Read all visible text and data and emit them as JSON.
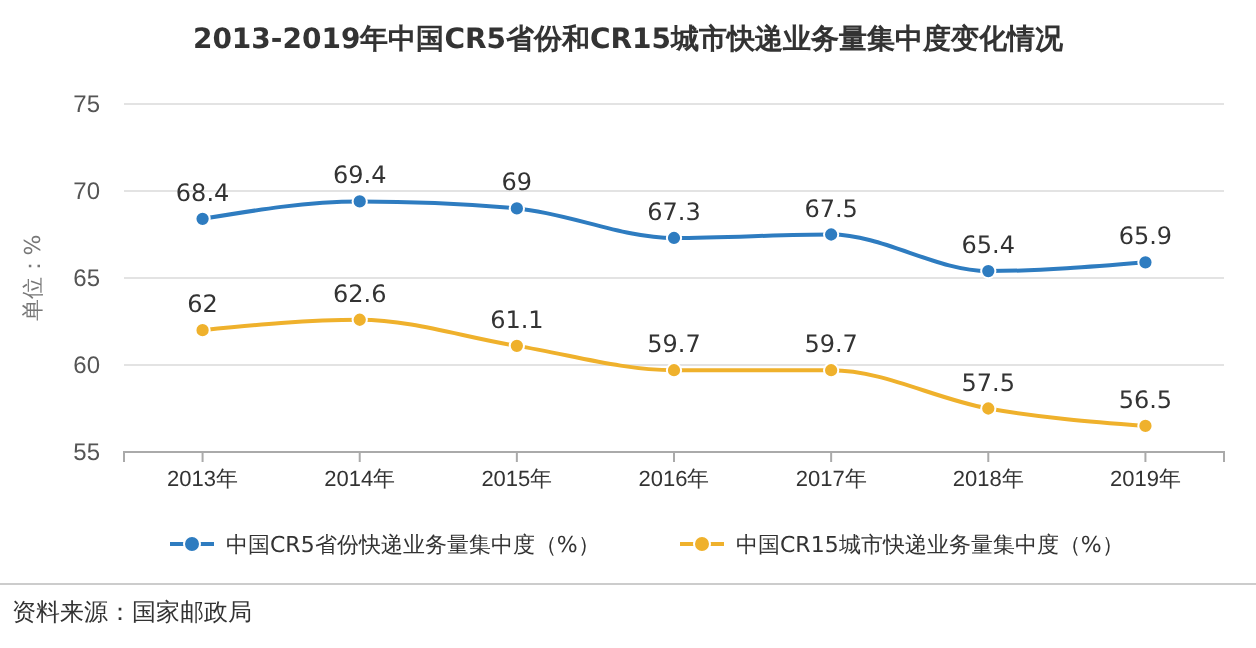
{
  "chart_data": {
    "type": "line",
    "title": "2013-2019年中国CR5省份和CR15城市快递业务量集中度变化情况",
    "ylabel": "单位：%",
    "categories": [
      "2013年",
      "2014年",
      "2015年",
      "2016年",
      "2017年",
      "2018年",
      "2019年"
    ],
    "series": [
      {
        "name": "中国CR5省份快递业务量集中度（%）",
        "color": "#2e7cc0",
        "values": [
          68.4,
          69.4,
          69,
          67.3,
          67.5,
          65.4,
          65.9
        ]
      },
      {
        "name": "中国CR15城市快递业务量集中度（%）",
        "color": "#efb12c",
        "values": [
          62,
          62.6,
          61.1,
          59.7,
          59.7,
          57.5,
          56.5
        ]
      }
    ],
    "ylim": [
      55,
      75
    ],
    "yticks": [
      55,
      60,
      65,
      70,
      75
    ],
    "grid": "y",
    "legend": "bottom",
    "marker": "circle",
    "line_style": "solid",
    "data_labels": true,
    "annotations": [
      "资料来源：国家邮政局"
    ]
  }
}
